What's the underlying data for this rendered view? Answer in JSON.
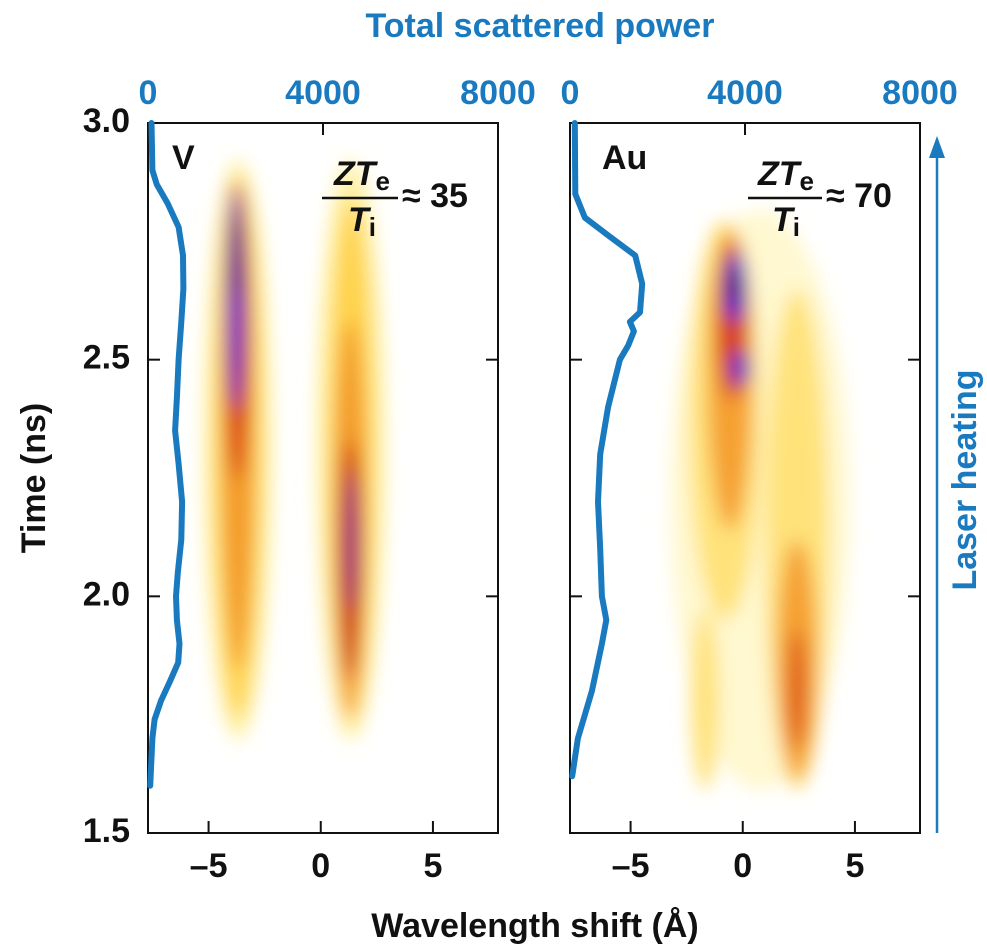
{
  "chart_data": {
    "type": "line",
    "top_axis_label": "Total scattered power",
    "x_label": "Wavelength shift (Å)",
    "y_label": "Time (ns)",
    "side_label": "Laser heating",
    "color": "#1a7abf",
    "ylim": [
      1.5,
      3.0
    ],
    "yticks": [
      1.5,
      {
        "value": 2.0,
        "label": "2.0"
      },
      2.5,
      {
        "value": 3.0,
        "label": "3.0"
      }
    ],
    "xlim": [
      -7.7,
      7.9
    ],
    "xticks": [
      {
        "value": -5,
        "label": "–5"
      },
      0,
      5
    ],
    "x2lim": [
      0,
      8000
    ],
    "x2ticks": [
      0,
      4000,
      8000
    ],
    "panels": [
      {
        "label": "V",
        "annotation": {
          "numerator": "ZT",
          "numerator_sub": "e",
          "denominator": "T",
          "denominator_sub": "i",
          "relation": "≈ 35"
        },
        "series": {
          "time": [
            3.0,
            2.9,
            2.87,
            2.83,
            2.78,
            2.72,
            2.65,
            2.58,
            2.5,
            2.42,
            2.35,
            2.28,
            2.2,
            2.12,
            2.05,
            2.0,
            1.95,
            1.9,
            1.86,
            1.82,
            1.78,
            1.74,
            1.7,
            1.6
          ],
          "power": [
            80,
            100,
            200,
            450,
            700,
            800,
            810,
            760,
            700,
            660,
            620,
            700,
            780,
            760,
            680,
            640,
            660,
            720,
            690,
            500,
            300,
            150,
            100,
            50
          ]
        }
      },
      {
        "label": "Au",
        "annotation": {
          "numerator": "ZT",
          "numerator_sub": "e",
          "denominator": "T",
          "denominator_sub": "i",
          "relation": "≈ 70"
        },
        "series": {
          "time": [
            3.0,
            2.85,
            2.8,
            2.76,
            2.72,
            2.66,
            2.6,
            2.58,
            2.56,
            2.53,
            2.5,
            2.4,
            2.3,
            2.2,
            2.1,
            2.0,
            1.95,
            1.9,
            1.8,
            1.7,
            1.62
          ],
          "power": [
            110,
            120,
            340,
            910,
            1490,
            1650,
            1600,
            1370,
            1460,
            1330,
            1140,
            870,
            690,
            640,
            690,
            730,
            830,
            730,
            500,
            180,
            50
          ]
        }
      }
    ]
  }
}
